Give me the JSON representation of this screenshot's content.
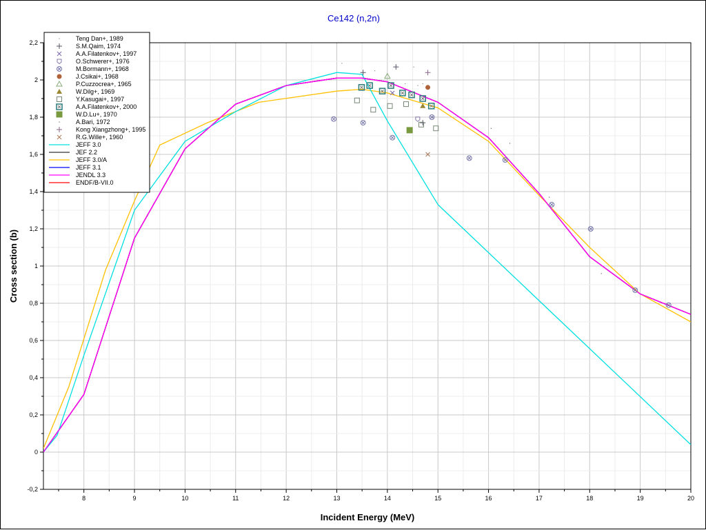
{
  "chart_data": {
    "type": "scatter",
    "title": "Ce142 (n,2n)",
    "xlabel": "Incident Energy (MeV)",
    "ylabel": "Cross section (b)",
    "xlim": [
      7.2,
      20
    ],
    "ylim": [
      -0.2,
      2.2
    ],
    "xticks": [
      "8",
      "9",
      "10",
      "11",
      "12",
      "13",
      "14",
      "15",
      "16",
      "17",
      "18",
      "19",
      "20"
    ],
    "yticks": [
      "-0,2",
      "0",
      "0,2",
      "0,4",
      "0,6",
      "0,8",
      "1",
      "1,2",
      "1,4",
      "1,6",
      "1,8",
      "2",
      "2,2"
    ],
    "grid": true,
    "legend_position": "top-left",
    "points": [
      {
        "name": "Teng Dan+, 1989",
        "marker": "dot",
        "color": "#888888",
        "x": [
          13.1,
          13.75,
          14.52,
          14.7,
          14.6,
          14.35
        ],
        "y": [
          2.09,
          2.05,
          2.07,
          1.98,
          1.97,
          1.98
        ]
      },
      {
        "name": "S.M.Qaim, 1974",
        "marker": "plus",
        "color": "#555566",
        "x": [
          13.52,
          14.17,
          14.7
        ],
        "y": [
          2.04,
          2.07,
          1.77
        ]
      },
      {
        "name": "A.A.Filatenkov+, 1997",
        "marker": "x",
        "color": "#7766aa",
        "x": [
          14.1
        ],
        "y": [
          1.93
        ]
      },
      {
        "name": "O.Schwerer+, 1976",
        "marker": "pentagon",
        "color": "#8877aa",
        "x": [
          14.6
        ],
        "y": [
          1.79
        ]
      },
      {
        "name": "M.Bormann+, 1968",
        "marker": "circlex",
        "color": "#7777aa",
        "x": [
          12.94,
          13.52,
          14.1,
          14.88,
          15.62,
          16.33,
          17.25,
          18.02,
          18.9,
          19.56
        ],
        "y": [
          1.79,
          1.77,
          1.69,
          1.8,
          1.58,
          1.57,
          1.33,
          1.2,
          0.87,
          0.79
        ]
      },
      {
        "name": "J.Csikai+, 1968",
        "marker": "filledcircle",
        "color": "#b0623a",
        "x": [
          14.8
        ],
        "y": [
          1.96
        ]
      },
      {
        "name": "P.Cuzzocrea+, 1965",
        "marker": "triangle",
        "color": "#88aa77",
        "x": [
          14.0
        ],
        "y": [
          2.02
        ]
      },
      {
        "name": "W.Dilg+, 1969",
        "marker": "filledtriangle",
        "color": "#998833",
        "x": [
          14.7
        ],
        "y": [
          1.86
        ]
      },
      {
        "name": "Y.Kasugai+, 1997",
        "marker": "square",
        "color": "#778877",
        "x": [
          13.4,
          13.72,
          14.05,
          14.37,
          14.67,
          14.96
        ],
        "y": [
          1.89,
          1.84,
          1.86,
          1.87,
          1.76,
          1.74
        ]
      },
      {
        "name": "A.A.Filatenkov+, 2000",
        "marker": "boxx",
        "color": "#2a7a7a",
        "x": [
          13.49,
          13.65,
          13.9,
          14.07,
          14.3,
          14.48,
          14.7,
          14.87
        ],
        "y": [
          1.96,
          1.97,
          1.94,
          1.97,
          1.93,
          1.92,
          1.9,
          1.86
        ]
      },
      {
        "name": "W.D.Lu+, 1970",
        "marker": "filledsquare",
        "color": "#7a9a40",
        "x": [
          14.44
        ],
        "y": [
          1.73
        ]
      },
      {
        "name": "A.Bari, 1972",
        "marker": "dot",
        "color": "#666666",
        "x": [
          16.05,
          16.42,
          17.2,
          18.23,
          14.9
        ],
        "y": [
          1.74,
          1.66,
          1.37,
          0.96,
          1.8
        ]
      },
      {
        "name": "Kong Xiangzhong+, 1995",
        "marker": "plus",
        "color": "#886688",
        "x": [
          14.8
        ],
        "y": [
          2.04
        ]
      },
      {
        "name": "R.G.Wille+, 1960",
        "marker": "x",
        "color": "#aa7755",
        "x": [
          14.8
        ],
        "y": [
          1.6
        ]
      }
    ],
    "series": [
      {
        "name": "JEFF 3.0",
        "color": "#00e0e0",
        "x": [
          7.2,
          7.47,
          8,
          9,
          10,
          11,
          12,
          13,
          13.5,
          14,
          15,
          20
        ],
        "y": [
          0,
          0.09,
          0.52,
          1.3,
          1.67,
          1.83,
          1.97,
          2.04,
          2.03,
          1.78,
          1.33,
          0.04
        ]
      },
      {
        "name": "JEF 2.2",
        "color": "#333333",
        "x": [
          7.2,
          8,
          9,
          10,
          11,
          12,
          13,
          13.5,
          14,
          15,
          16,
          17,
          17.5,
          18,
          19,
          20
        ],
        "y": [
          0,
          0.31,
          1.15,
          1.63,
          1.87,
          1.97,
          2.01,
          2.01,
          1.99,
          1.88,
          1.69,
          1.39,
          1.22,
          1.05,
          0.85,
          0.74
        ]
      },
      {
        "name": "JEFF 3.0/A",
        "color": "#ffc000",
        "x": [
          7.2,
          7.7,
          8.43,
          9,
          9.5,
          10.44,
          11.46,
          13,
          13.5,
          14,
          15,
          16,
          17,
          18,
          19,
          20
        ],
        "y": [
          0.02,
          0.35,
          0.98,
          1.35,
          1.65,
          1.77,
          1.88,
          1.94,
          1.95,
          1.93,
          1.85,
          1.67,
          1.38,
          1.1,
          0.85,
          0.7
        ]
      },
      {
        "name": "JEFF 3.1",
        "color": "#0000ff",
        "x": [
          7.2,
          8,
          9,
          10,
          11,
          12,
          13,
          13.5,
          14,
          15,
          16,
          17,
          17.5,
          18,
          19,
          20
        ],
        "y": [
          0,
          0.31,
          1.15,
          1.63,
          1.87,
          1.97,
          2.01,
          2.01,
          1.99,
          1.88,
          1.69,
          1.39,
          1.22,
          1.05,
          0.85,
          0.74
        ]
      },
      {
        "name": "JENDL 3.3",
        "color": "#ff00ff",
        "x": [
          7.2,
          8,
          9,
          10,
          11,
          12,
          13,
          13.5,
          14,
          15,
          16,
          17,
          17.5,
          18,
          19,
          20
        ],
        "y": [
          0,
          0.31,
          1.15,
          1.63,
          1.87,
          1.97,
          2.01,
          2.01,
          1.99,
          1.88,
          1.69,
          1.39,
          1.22,
          1.05,
          0.85,
          0.74
        ]
      },
      {
        "name": "ENDF/B-VII.0",
        "color": "#ff0000",
        "x": [
          7.2,
          8,
          9,
          10,
          11,
          12,
          13,
          13.5,
          14,
          15,
          16,
          17,
          17.5,
          18,
          19,
          20
        ],
        "y": [
          0,
          0.31,
          1.15,
          1.63,
          1.87,
          1.97,
          2.01,
          2.01,
          1.99,
          1.88,
          1.69,
          1.39,
          1.22,
          1.05,
          0.85,
          0.74
        ]
      }
    ],
    "draw_order": [
      "JEF 2.2",
      "JEFF 3.1",
      "ENDF/B-VII.0",
      "JEFF 3.0/A",
      "JEFF 3.0",
      "JENDL 3.3"
    ]
  }
}
